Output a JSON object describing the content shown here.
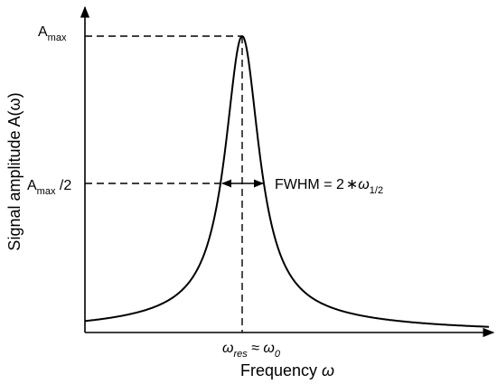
{
  "diagram": {
    "type": "line",
    "curve": "lorentzian",
    "colors": {
      "stroke": "#000000",
      "background": "#ffffff"
    },
    "x_axis": {
      "title": "Frequency ",
      "title_symbol": "ω",
      "tick_label": {
        "base": "ω",
        "sub": "res",
        "approx": " ≈ ",
        "base2": "ω",
        "sub2": "0"
      }
    },
    "y_axis": {
      "title": "Signal amplitude A(ω)"
    },
    "levels": {
      "max_label": {
        "base": "A",
        "sub": "max"
      },
      "half_label": {
        "base": "A",
        "sub": "max",
        "suffix": " /2"
      }
    },
    "annotation": {
      "fwhm": {
        "text": "FWHM = 2",
        "star": "∗",
        "symbol": "ω",
        "sub": "1/2"
      }
    },
    "peak": {
      "relative_height": 1.0,
      "half_level": 0.5
    }
  }
}
